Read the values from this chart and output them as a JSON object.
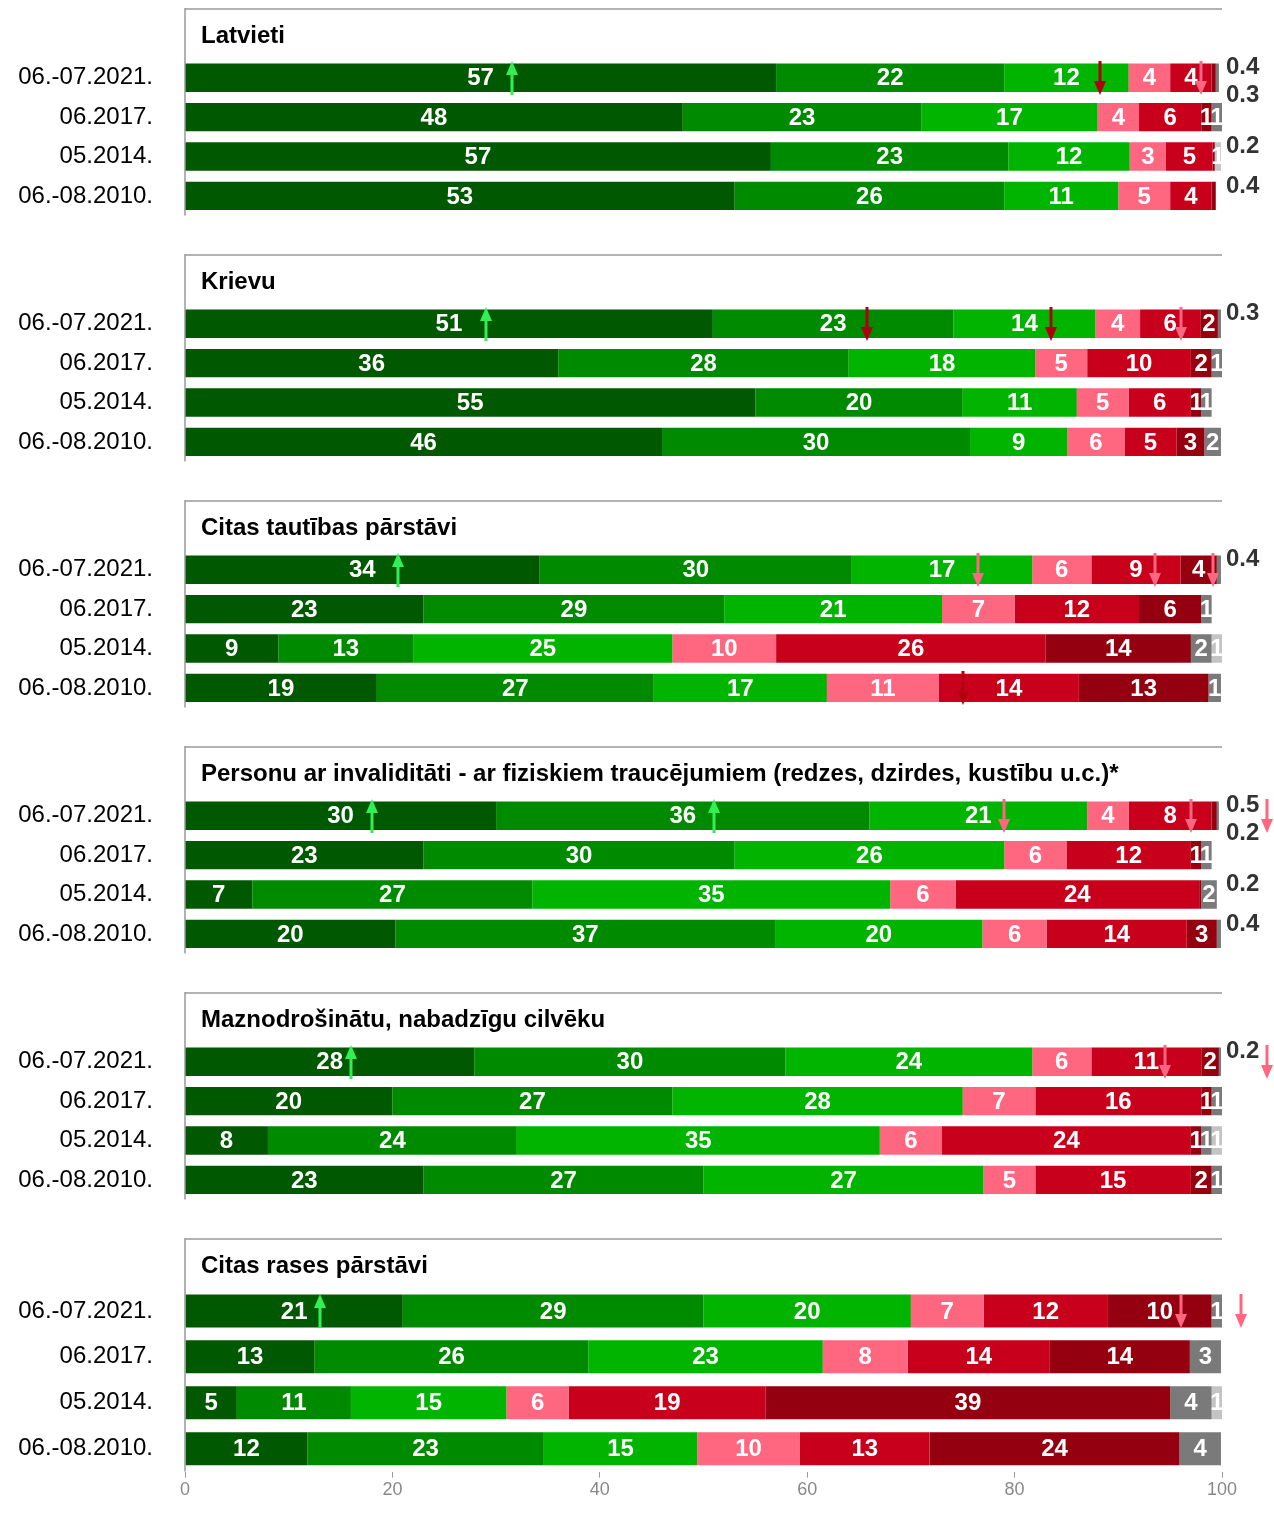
{
  "chart_data": [
    {
      "type": "bar",
      "orientation": "horizontal",
      "stacked": true,
      "title": "Latvieti",
      "categories": [
        "06.-07.2021.",
        "06.2017.",
        "05.2014.",
        "06.-08.2010."
      ],
      "xlim": [
        0,
        100
      ],
      "xticks": [
        0,
        20,
        40,
        60,
        80,
        100
      ],
      "tick_labels": "y",
      "series": [
        {
          "color": "#005800",
          "values": [
            57,
            48,
            56.5,
            53
          ],
          "value_labels": [
            "57",
            "48",
            "57",
            "53"
          ]
        },
        {
          "color": "#008a00",
          "values": [
            22,
            23,
            22.9,
            26
          ],
          "value_labels": [
            "22",
            "23",
            "23",
            "26"
          ]
        },
        {
          "color": "#00b400",
          "values": [
            12,
            17,
            11.7,
            11
          ],
          "value_labels": [
            "12",
            "17",
            "12",
            "11"
          ]
        },
        {
          "color": "#ff6680",
          "values": [
            4,
            4,
            3.5,
            5
          ],
          "value_labels": [
            "4",
            "4",
            "3",
            "5"
          ]
        },
        {
          "color": "#c8001c",
          "values": [
            4,
            6,
            4.5,
            4
          ],
          "value_labels": [
            "4",
            "6",
            "5",
            "4"
          ]
        },
        {
          "color": "#94000f",
          "values": [
            0.4,
            1,
            0.2,
            0.4
          ],
          "value_labels": [
            "0.4",
            "1",
            "0.2",
            "0.4"
          ]
        },
        {
          "color": "#7a7a7a",
          "values": [
            0.3,
            1,
            null,
            null
          ],
          "value_labels": [
            "0.3",
            "1",
            null,
            null
          ]
        },
        {
          "color": "#c4c4c4",
          "values": [
            null,
            null,
            0.6,
            null
          ],
          "value_labels": [
            null,
            null,
            "1",
            null
          ]
        }
      ]
    },
    {
      "type": "bar",
      "orientation": "horizontal",
      "stacked": true,
      "title": "Krievu",
      "categories": [
        "06.-07.2021.",
        "06.2017.",
        "05.2014.",
        "06.-08.2010."
      ],
      "xlim": [
        0,
        100
      ],
      "xticks": [
        0,
        20,
        40,
        60,
        80,
        100
      ],
      "tick_labels": "y",
      "series": [
        {
          "color": "#005800",
          "values": [
            50.9,
            36,
            55,
            46
          ],
          "value_labels": [
            "51",
            "36",
            "55",
            "46"
          ]
        },
        {
          "color": "#008a00",
          "values": [
            23.2,
            28,
            20,
            29.7
          ],
          "value_labels": [
            "23",
            "28",
            "20",
            "30"
          ]
        },
        {
          "color": "#00b400",
          "values": [
            13.7,
            18,
            11,
            9.4
          ],
          "value_labels": [
            "14",
            "18",
            "11",
            "9"
          ]
        },
        {
          "color": "#ff6680",
          "values": [
            4.3,
            5,
            5,
            5.5
          ],
          "value_labels": [
            "4",
            "5",
            "5",
            "6"
          ]
        },
        {
          "color": "#c8001c",
          "values": [
            5.8,
            10,
            6,
            5
          ],
          "value_labels": [
            "6",
            "10",
            "6",
            "5"
          ]
        },
        {
          "color": "#94000f",
          "values": [
            1.7,
            2,
            1,
            2.7
          ],
          "value_labels": [
            "2",
            "2",
            "1",
            "3"
          ]
        },
        {
          "color": "#7a7a7a",
          "values": [
            0.3,
            1,
            1,
            1.6
          ],
          "value_labels": [
            "0.3",
            "1",
            "1",
            "2"
          ]
        }
      ]
    },
    {
      "type": "bar",
      "orientation": "horizontal",
      "stacked": true,
      "title": "Citas tautības pārstāvi",
      "categories": [
        "06.-07.2021.",
        "06.2017.",
        "05.2014.",
        "06.-08.2010."
      ],
      "xlim": [
        0,
        100
      ],
      "xticks": [
        0,
        20,
        40,
        60,
        80,
        100
      ],
      "tick_labels": "y",
      "series": [
        {
          "color": "#005800",
          "values": [
            34.2,
            23,
            9,
            18.5
          ],
          "value_labels": [
            "34",
            "23",
            "9",
            "19"
          ]
        },
        {
          "color": "#008a00",
          "values": [
            30.1,
            29,
            13,
            26.7
          ],
          "value_labels": [
            "30",
            "29",
            "13",
            "27"
          ]
        },
        {
          "color": "#00b400",
          "values": [
            17.4,
            21,
            25,
            16.7
          ],
          "value_labels": [
            "17",
            "21",
            "25",
            "17"
          ]
        },
        {
          "color": "#ff6680",
          "values": [
            5.7,
            7,
            10,
            10.8
          ],
          "value_labels": [
            "6",
            "7",
            "10",
            "11"
          ]
        },
        {
          "color": "#c8001c",
          "values": [
            8.6,
            12,
            26,
            13.5
          ],
          "value_labels": [
            "9",
            "12",
            "26",
            "14"
          ]
        },
        {
          "color": "#94000f",
          "values": [
            3.5,
            6,
            14,
            12.5
          ],
          "value_labels": [
            "4",
            "6",
            "14",
            "13"
          ]
        },
        {
          "color": "#7a7a7a",
          "values": [
            0.4,
            1,
            2,
            1.2
          ],
          "value_labels": [
            "0.4",
            "1",
            "2",
            "1"
          ]
        },
        {
          "color": "#c4c4c4",
          "values": [
            null,
            null,
            1,
            null
          ],
          "value_labels": [
            null,
            null,
            "1",
            null
          ]
        }
      ]
    },
    {
      "type": "bar",
      "orientation": "horizontal",
      "stacked": true,
      "title": "Personu ar invaliditāti - ar fiziskiem traucējumiem (redzes, dzirdes, kustību u.c.)*",
      "categories": [
        "06.-07.2021.",
        "06.2017.",
        "05.2014.",
        "06.-08.2010."
      ],
      "xlim": [
        0,
        100
      ],
      "xticks": [
        0,
        20,
        40,
        60,
        80,
        100
      ],
      "tick_labels": "y",
      "series": [
        {
          "color": "#005800",
          "values": [
            30,
            23,
            6.5,
            20.3
          ],
          "value_labels": [
            "30",
            "23",
            "7",
            "20"
          ]
        },
        {
          "color": "#008a00",
          "values": [
            36,
            30,
            27,
            36.6
          ],
          "value_labels": [
            "36",
            "30",
            "27",
            "37"
          ]
        },
        {
          "color": "#00b400",
          "values": [
            21,
            26,
            34.5,
            20
          ],
          "value_labels": [
            "21",
            "26",
            "35",
            "20"
          ]
        },
        {
          "color": "#ff6680",
          "values": [
            4,
            6,
            6.3,
            6.2
          ],
          "value_labels": [
            "4",
            "6",
            "6",
            "6"
          ]
        },
        {
          "color": "#c8001c",
          "values": [
            8,
            12,
            23.5,
            13.5
          ],
          "value_labels": [
            "8",
            "12",
            "24",
            "14"
          ]
        },
        {
          "color": "#94000f",
          "values": [
            0.5,
            1,
            0.2,
            2.9
          ],
          "value_labels": [
            "0.5",
            "1",
            "0.2",
            "3"
          ]
        },
        {
          "color": "#7a7a7a",
          "values": [
            0.2,
            1,
            1.5,
            0.4
          ],
          "value_labels": [
            "0.2",
            "1",
            "2",
            "0.4"
          ]
        }
      ]
    },
    {
      "type": "bar",
      "orientation": "horizontal",
      "stacked": true,
      "title": "Maznodrošinātu, nabadzīgu cilvēku",
      "categories": [
        "06.-07.2021.",
        "06.2017.",
        "05.2014.",
        "06.-08.2010."
      ],
      "xlim": [
        0,
        100
      ],
      "xticks": [
        0,
        20,
        40,
        60,
        80,
        100
      ],
      "tick_labels": "y",
      "series": [
        {
          "color": "#005800",
          "values": [
            27.9,
            20,
            8,
            23
          ],
          "value_labels": [
            "28",
            "20",
            "8",
            "23"
          ]
        },
        {
          "color": "#008a00",
          "values": [
            30,
            27,
            24,
            27
          ],
          "value_labels": [
            "30",
            "27",
            "24",
            "27"
          ]
        },
        {
          "color": "#00b400",
          "values": [
            23.8,
            28,
            35,
            27
          ],
          "value_labels": [
            "24",
            "28",
            "35",
            "27"
          ]
        },
        {
          "color": "#ff6680",
          "values": [
            5.7,
            7,
            6,
            5
          ],
          "value_labels": [
            "6",
            "7",
            "6",
            "5"
          ]
        },
        {
          "color": "#c8001c",
          "values": [
            10.6,
            16,
            24,
            15
          ],
          "value_labels": [
            "11",
            "16",
            "24",
            "15"
          ]
        },
        {
          "color": "#94000f",
          "values": [
            1.7,
            1,
            1,
            2
          ],
          "value_labels": [
            "2",
            "1",
            "1",
            "2"
          ]
        },
        {
          "color": "#7a7a7a",
          "values": [
            0.2,
            1,
            1,
            1
          ],
          "value_labels": [
            "0.2",
            "1",
            "1",
            "1"
          ]
        },
        {
          "color": "#c4c4c4",
          "values": [
            null,
            null,
            1,
            null
          ],
          "value_labels": [
            null,
            null,
            "1",
            null
          ]
        }
      ]
    },
    {
      "type": "bar",
      "orientation": "horizontal",
      "stacked": true,
      "title": "Citas rases pārstāvi",
      "categories": [
        "06.-07.2021.",
        "06.2017.",
        "05.2014.",
        "06.-08.2010."
      ],
      "xlim": [
        0,
        100
      ],
      "xticks": [
        0,
        20,
        40,
        60,
        80,
        100
      ],
      "series": [
        {
          "color": "#005800",
          "values": [
            21,
            12.5,
            5,
            11.8
          ],
          "value_labels": [
            "21",
            "13",
            "5",
            "12"
          ]
        },
        {
          "color": "#008a00",
          "values": [
            29,
            26.4,
            11,
            22.8
          ],
          "value_labels": [
            "29",
            "26",
            "11",
            "23"
          ]
        },
        {
          "color": "#00b400",
          "values": [
            20,
            22.6,
            15,
            14.8
          ],
          "value_labels": [
            "20",
            "23",
            "15",
            "15"
          ]
        },
        {
          "color": "#ff6680",
          "values": [
            7,
            8.2,
            6,
            9.9
          ],
          "value_labels": [
            "7",
            "8",
            "6",
            "10"
          ]
        },
        {
          "color": "#c8001c",
          "values": [
            12,
            13.7,
            19,
            12.5
          ],
          "value_labels": [
            "12",
            "14",
            "19",
            "13"
          ]
        },
        {
          "color": "#94000f",
          "values": [
            10,
            13.5,
            39,
            24.1
          ],
          "value_labels": [
            "10",
            "14",
            "39",
            "24"
          ]
        },
        {
          "color": "#7a7a7a",
          "values": [
            1,
            3,
            4,
            4
          ],
          "value_labels": [
            "1",
            "3",
            "4",
            "4"
          ]
        },
        {
          "color": "#c4c4c4",
          "values": [
            null,
            null,
            1,
            null
          ],
          "value_labels": [
            null,
            null,
            "1",
            null
          ]
        }
      ]
    }
  ]
}
